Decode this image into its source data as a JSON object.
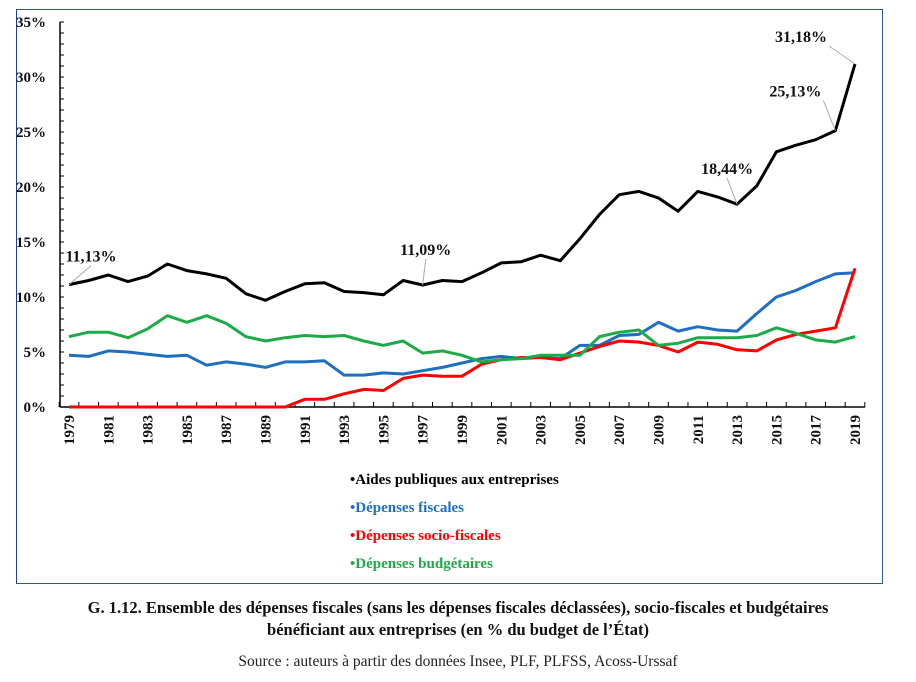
{
  "chart_data": {
    "type": "line",
    "title": "G. 1.12. Ensemble des dépenses fiscales (sans les dépenses fiscales déclassées), socio-fiscales et budgétaires bénéficiant aux entreprises (en % du budget de l’État)",
    "xlabel": "",
    "ylabel": "",
    "ylim": [
      0,
      35
    ],
    "y_ticks": [
      "0%",
      "5%",
      "10%",
      "15%",
      "20%",
      "25%",
      "30%",
      "35%"
    ],
    "y_tick_values": [
      0,
      5,
      10,
      15,
      20,
      25,
      30,
      35
    ],
    "y_minor_step": 1,
    "x": [
      1979,
      1980,
      1981,
      1982,
      1983,
      1984,
      1985,
      1986,
      1987,
      1988,
      1989,
      1990,
      1991,
      1992,
      1993,
      1994,
      1995,
      1996,
      1997,
      1998,
      1999,
      2000,
      2001,
      2002,
      2003,
      2004,
      2005,
      2006,
      2007,
      2008,
      2009,
      2010,
      2011,
      2012,
      2013,
      2014,
      2015,
      2016,
      2017,
      2018,
      2019
    ],
    "x_tick_labels": [
      "1979",
      "1981",
      "1983",
      "1985",
      "1987",
      "1989",
      "1991",
      "1993",
      "1995",
      "1997",
      "1999",
      "2001",
      "2003",
      "2005",
      "2007",
      "2009",
      "2011",
      "2013",
      "2015",
      "2017",
      "2019"
    ],
    "grid": false,
    "legend_position": "bottom-center",
    "series": [
      {
        "name": "Aides publiques aux entreprises",
        "color": "#000000",
        "values": [
          11.13,
          11.5,
          12.0,
          11.4,
          11.9,
          13.0,
          12.4,
          12.1,
          11.7,
          10.3,
          9.7,
          10.5,
          11.2,
          11.3,
          10.5,
          10.4,
          10.2,
          11.5,
          11.09,
          11.5,
          11.4,
          12.2,
          13.1,
          13.2,
          13.8,
          13.3,
          15.3,
          17.5,
          19.3,
          19.6,
          19.0,
          17.8,
          19.6,
          19.1,
          18.44,
          20.1,
          23.2,
          23.8,
          24.3,
          25.13,
          31.18
        ]
      },
      {
        "name": "Dépenses fiscales",
        "color": "#1f6fc0",
        "values": [
          4.7,
          4.6,
          5.1,
          5.0,
          4.8,
          4.6,
          4.7,
          3.8,
          4.1,
          3.9,
          3.6,
          4.1,
          4.1,
          4.2,
          2.9,
          2.9,
          3.1,
          3.0,
          3.3,
          3.6,
          4.0,
          4.4,
          4.6,
          4.4,
          4.5,
          4.4,
          5.6,
          5.6,
          6.5,
          6.6,
          7.7,
          6.9,
          7.3,
          7.0,
          6.9,
          8.5,
          10.0,
          10.6,
          11.4,
          12.1,
          12.2
        ]
      },
      {
        "name": "Dépenses socio-fiscales",
        "color": "#ff0000",
        "values": [
          0,
          0,
          0,
          0,
          0,
          0,
          0,
          0,
          0,
          0,
          0,
          0,
          0.7,
          0.7,
          1.2,
          1.6,
          1.5,
          2.6,
          2.9,
          2.8,
          2.8,
          3.9,
          4.3,
          4.5,
          4.5,
          4.3,
          4.9,
          5.5,
          6.0,
          5.9,
          5.6,
          5.0,
          5.9,
          5.7,
          5.2,
          5.1,
          6.1,
          6.6,
          6.9,
          7.2,
          12.6
        ]
      },
      {
        "name": "Dépenses budgétaires",
        "color": "#1faa4a",
        "values": [
          6.4,
          6.8,
          6.8,
          6.3,
          7.1,
          8.3,
          7.7,
          8.3,
          7.6,
          6.4,
          6.0,
          6.3,
          6.5,
          6.4,
          6.5,
          6.0,
          5.6,
          6.0,
          4.9,
          5.1,
          4.7,
          4.1,
          4.3,
          4.4,
          4.7,
          4.7,
          4.7,
          6.4,
          6.8,
          7.0,
          5.6,
          5.8,
          6.3,
          6.3,
          6.3,
          6.5,
          7.2,
          6.7,
          6.1,
          5.9,
          6.4
        ]
      }
    ],
    "annotations": [
      {
        "series": 0,
        "year": 1979,
        "label": "11,13%"
      },
      {
        "series": 0,
        "year": 1997,
        "label": "11,09%"
      },
      {
        "series": 0,
        "year": 2013,
        "label": "18,44%"
      },
      {
        "series": 0,
        "year": 2018,
        "label": "25,13%"
      },
      {
        "series": 0,
        "year": 2019,
        "label": "31,18%"
      }
    ]
  },
  "legend": {
    "items": [
      {
        "label": "Aides publiques aux entreprises",
        "color": "#000000"
      },
      {
        "label": "Dépenses fiscales",
        "color": "#1f6fc0"
      },
      {
        "label": "Dépenses socio-fiscales",
        "color": "#ff0000"
      },
      {
        "label": "Dépenses budgétaires",
        "color": "#1faa4a"
      }
    ],
    "bullet": "•"
  },
  "caption": {
    "line1": "G. 1.12. Ensemble des dépenses fiscales (sans les dépenses fiscales déclassées), socio-fiscales et budgétaires",
    "line2": "bénéficiant aux entreprises (en % du budget de l’État)"
  },
  "source": "Source : auteurs à partir des données Insee, PLF, PLFSS, Acoss-Urssaf"
}
